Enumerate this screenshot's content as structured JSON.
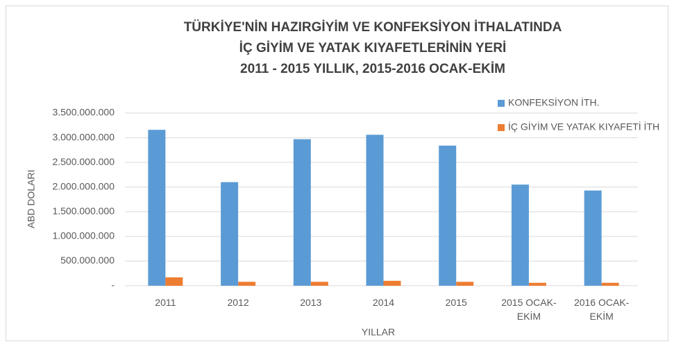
{
  "chart_data": {
    "type": "bar",
    "title": [
      "TÜRKİYE'NİN HAZIRGİYİM VE KONFEKSİYON İTHALATINDA",
      "İÇ GİYİM VE YATAK KIYAFETLERİNİN YERİ",
      "2011 - 2015 YILLIK, 2015-2016 OCAK-EKİM"
    ],
    "x_label": "YILLAR",
    "y_label": "ABD DOLARI",
    "categories": [
      "2011",
      "2012",
      "2013",
      "2014",
      "2015",
      "2015 OCAK-EKİM",
      "2016 OCAK-EKİM"
    ],
    "series": [
      {
        "name": "KONFEKSİYON İTH.",
        "color": "#5b9bd5",
        "values": [
          3160000000,
          2100000000,
          2970000000,
          3060000000,
          2840000000,
          2050000000,
          1930000000
        ]
      },
      {
        "name": "İÇ GİYİM VE YATAK KIYAFETİ İTH",
        "color": "#ed7d31",
        "values": [
          170000000,
          80000000,
          80000000,
          100000000,
          80000000,
          60000000,
          60000000
        ]
      }
    ],
    "ylim": [
      0,
      3500000000
    ],
    "yticks": [
      {
        "value": 0,
        "label": "-"
      },
      {
        "value": 500000000,
        "label": "500.000.000"
      },
      {
        "value": 1000000000,
        "label": "1.000.000.000"
      },
      {
        "value": 1500000000,
        "label": "1.500.000.000"
      },
      {
        "value": 2000000000,
        "label": "2.000.000.000"
      },
      {
        "value": 2500000000,
        "label": "2.500.000.000"
      },
      {
        "value": 3000000000,
        "label": "3.000.000.000"
      },
      {
        "value": 3500000000,
        "label": "3.500.000.000"
      }
    ],
    "grid": true,
    "legend": "right"
  }
}
